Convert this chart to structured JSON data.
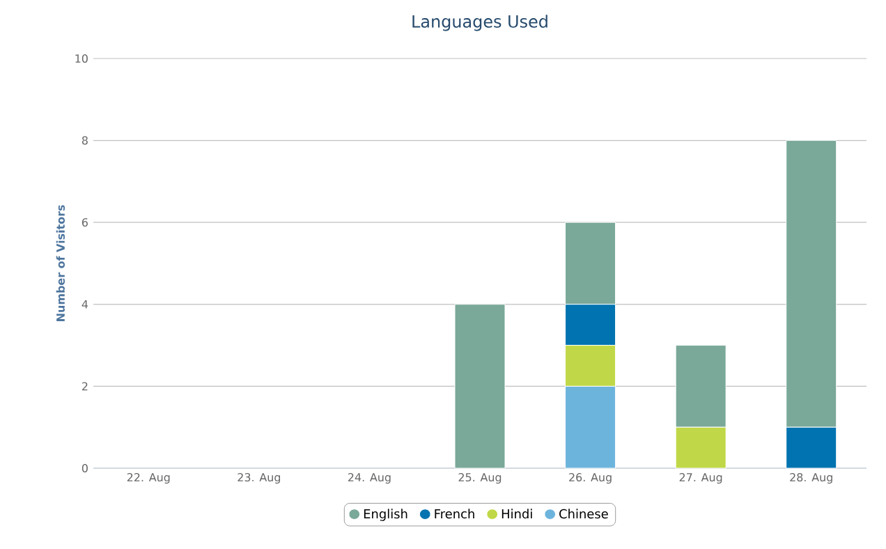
{
  "chart_data": {
    "type": "bar",
    "title": "Languages Used",
    "ylabel": "Number of Visitors",
    "categories": [
      "22. Aug",
      "23. Aug",
      "24. Aug",
      "25. Aug",
      "26. Aug",
      "27. Aug",
      "28. Aug"
    ],
    "stacked": true,
    "series": [
      {
        "name": "Chinese",
        "color": "#6db4dd",
        "values": [
          0,
          0,
          0,
          0,
          2,
          0,
          0
        ]
      },
      {
        "name": "Hindi",
        "color": "#c0d847",
        "values": [
          0,
          0,
          0,
          0,
          1,
          1,
          0
        ]
      },
      {
        "name": "French",
        "color": "#0073b0",
        "values": [
          0,
          0,
          0,
          0,
          1,
          0,
          1
        ]
      },
      {
        "name": "English",
        "color": "#7aa899",
        "values": [
          0,
          0,
          0,
          4,
          2,
          2,
          7
        ]
      }
    ],
    "ylim": [
      0,
      10
    ],
    "yticks": [
      0,
      2,
      4,
      6,
      8,
      10
    ],
    "grid": "y",
    "legend": "bottom"
  }
}
